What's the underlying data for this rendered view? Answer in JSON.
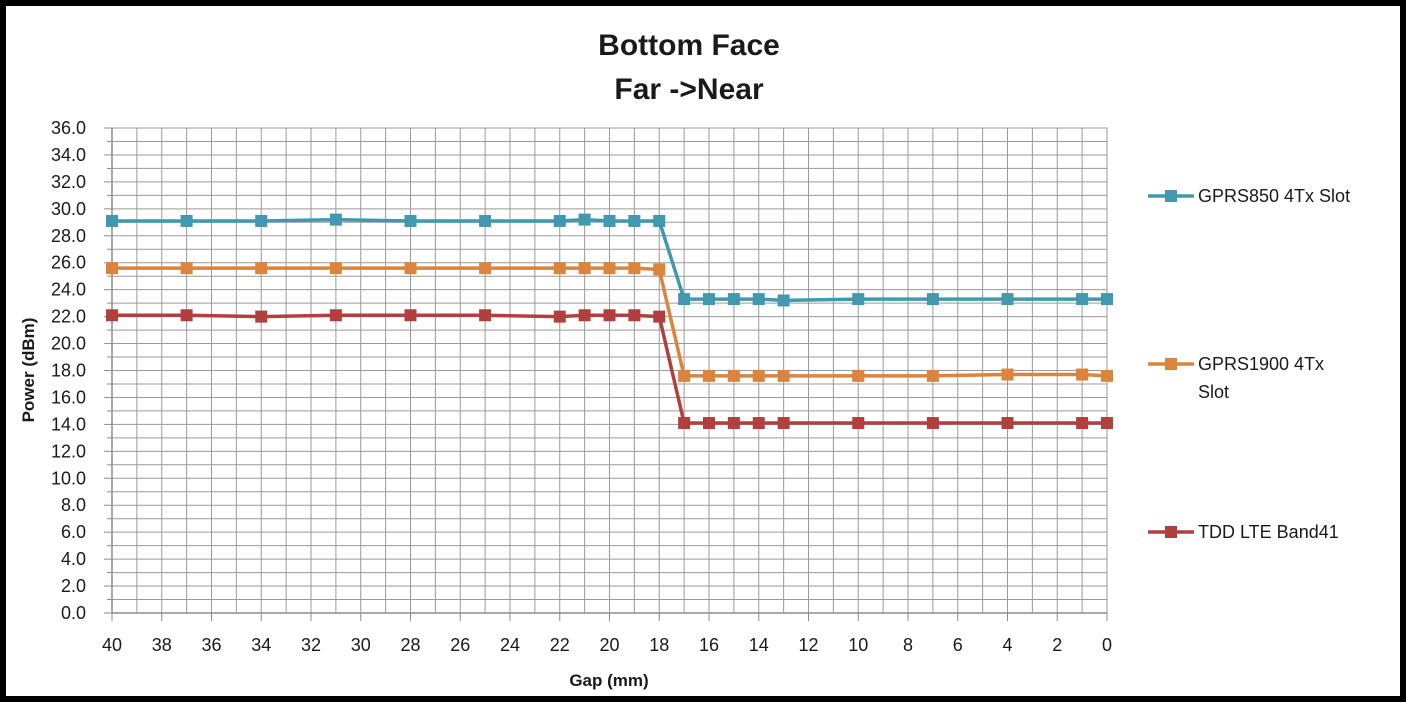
{
  "chart_data": {
    "type": "line",
    "title_lines": [
      "Bottom Face",
      "Far ->Near"
    ],
    "xlabel": "Gap (mm)",
    "ylabel": "Power (dBm)",
    "xlim": [
      40,
      0
    ],
    "x_reversed": true,
    "ylim": [
      0,
      36
    ],
    "grid": true,
    "legend_position": "right",
    "x_ticks": [
      40,
      38,
      36,
      34,
      32,
      30,
      28,
      26,
      24,
      22,
      20,
      18,
      16,
      14,
      12,
      10,
      8,
      6,
      4,
      2,
      0
    ],
    "y_ticks": [
      "0.0",
      "2.0",
      "4.0",
      "6.0",
      "8.0",
      "10.0",
      "12.0",
      "14.0",
      "16.0",
      "18.0",
      "20.0",
      "22.0",
      "24.0",
      "26.0",
      "28.0",
      "30.0",
      "32.0",
      "34.0",
      "36.0"
    ],
    "x": [
      40,
      37,
      34,
      31,
      28,
      25,
      22,
      21,
      20,
      19,
      18,
      17,
      16,
      15,
      14,
      13,
      10,
      7,
      4,
      1,
      0
    ],
    "series": [
      {
        "name": "GPRS850 4Tx Slot",
        "legend_lines": [
          "GPRS850 4Tx Slot"
        ],
        "color": "#4198AF",
        "values": [
          29.1,
          29.1,
          29.1,
          29.2,
          29.1,
          29.1,
          29.1,
          29.2,
          29.1,
          29.1,
          29.1,
          23.3,
          23.3,
          23.3,
          23.3,
          23.2,
          23.3,
          23.3,
          23.3,
          23.3,
          23.3
        ]
      },
      {
        "name": "GPRS1900 4Tx Slot",
        "legend_lines": [
          "GPRS1900 4Tx",
          "Slot"
        ],
        "color": "#DB843D",
        "values": [
          25.6,
          25.6,
          25.6,
          25.6,
          25.6,
          25.6,
          25.6,
          25.6,
          25.6,
          25.6,
          25.5,
          17.6,
          17.6,
          17.6,
          17.6,
          17.6,
          17.6,
          17.6,
          17.7,
          17.7,
          17.6
        ]
      },
      {
        "name": "TDD LTE Band41",
        "legend_lines": [
          "TDD LTE Band41"
        ],
        "color": "#B0403D",
        "values": [
          22.1,
          22.1,
          22.0,
          22.1,
          22.1,
          22.1,
          22.0,
          22.1,
          22.1,
          22.1,
          22.0,
          14.1,
          14.1,
          14.1,
          14.1,
          14.1,
          14.1,
          14.1,
          14.1,
          14.1,
          14.1
        ]
      }
    ]
  }
}
